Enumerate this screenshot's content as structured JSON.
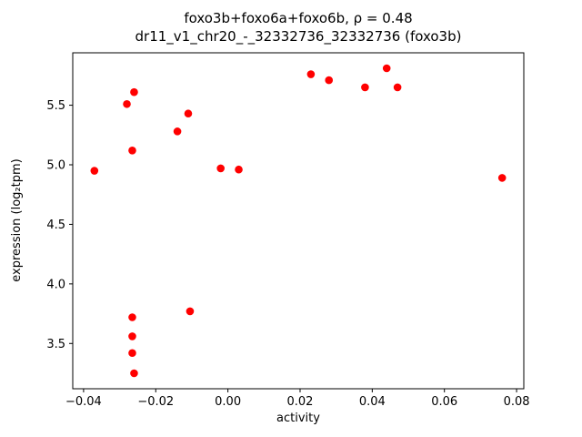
{
  "chart_data": {
    "type": "scatter",
    "title": "foxo3b+foxo6a+foxo6b, ρ = 0.48",
    "subtitle": "dr11_v1_chr20_-_32332736_32332736 (foxo3b)",
    "xlabel": "activity",
    "ylabel": "expression (log₂tpm)",
    "xlim": [
      -0.043,
      0.082
    ],
    "ylim": [
      3.12,
      5.94
    ],
    "grid": false,
    "legend": "none",
    "marker_color": "#ff0000",
    "x_ticks": [
      {
        "v": -0.04,
        "label": "−0.04"
      },
      {
        "v": -0.02,
        "label": "−0.02"
      },
      {
        "v": 0.0,
        "label": "0.00"
      },
      {
        "v": 0.02,
        "label": "0.02"
      },
      {
        "v": 0.04,
        "label": "0.04"
      },
      {
        "v": 0.06,
        "label": "0.06"
      },
      {
        "v": 0.08,
        "label": "0.08"
      }
    ],
    "y_ticks": [
      {
        "v": 3.5,
        "label": "3.5"
      },
      {
        "v": 4.0,
        "label": "4.0"
      },
      {
        "v": 4.5,
        "label": "4.5"
      },
      {
        "v": 5.0,
        "label": "5.0"
      },
      {
        "v": 5.5,
        "label": "5.5"
      }
    ],
    "points": [
      [
        -0.037,
        4.95
      ],
      [
        -0.028,
        5.51
      ],
      [
        -0.026,
        5.61
      ],
      [
        -0.0265,
        5.12
      ],
      [
        -0.0265,
        3.72
      ],
      [
        -0.0265,
        3.56
      ],
      [
        -0.0265,
        3.42
      ],
      [
        -0.026,
        3.25
      ],
      [
        -0.014,
        5.28
      ],
      [
        -0.011,
        5.43
      ],
      [
        -0.0105,
        3.77
      ],
      [
        -0.002,
        4.97
      ],
      [
        0.003,
        4.96
      ],
      [
        0.023,
        5.76
      ],
      [
        0.028,
        5.71
      ],
      [
        0.038,
        5.65
      ],
      [
        0.044,
        5.81
      ],
      [
        0.047,
        5.65
      ],
      [
        0.076,
        4.89
      ]
    ]
  }
}
